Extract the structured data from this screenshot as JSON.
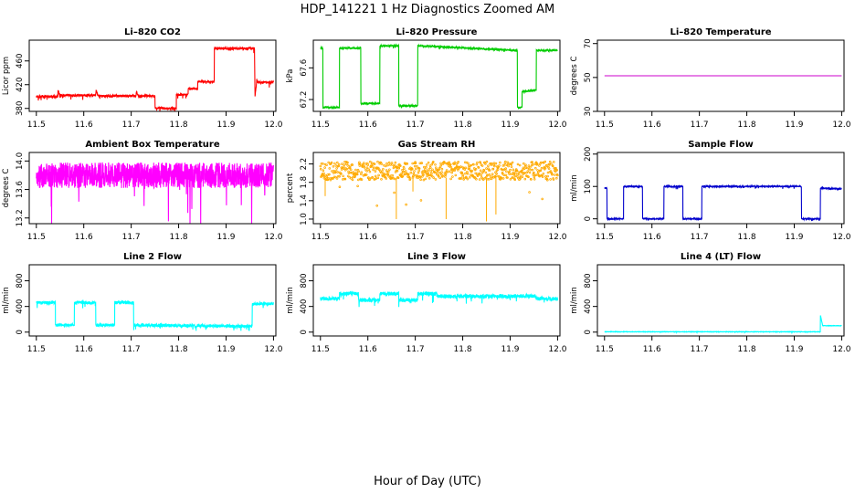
{
  "figure": {
    "title": "HDP_141221  1 Hz Diagnostics Zoomed AM",
    "xlabel": "Hour of Day (UTC)"
  },
  "chart_data": [
    {
      "type": "line",
      "title": "Li–820 CO2",
      "ylabel": "Licor ppm",
      "color": "#ff0000",
      "xlim": [
        11.485,
        12.005
      ],
      "ylim": [
        375,
        495
      ],
      "x_ticks": [
        "11.5",
        "11.6",
        "11.7",
        "11.8",
        "11.9",
        "12.0"
      ],
      "y_ticks": [
        "380",
        "420",
        "460"
      ],
      "x": [
        11.5,
        11.545,
        11.546,
        11.55,
        11.55,
        11.625,
        11.626,
        11.63,
        11.63,
        11.71,
        11.711,
        11.715,
        11.715,
        11.75,
        11.75,
        11.795,
        11.795,
        11.82,
        11.82,
        11.84,
        11.84,
        11.875,
        11.875,
        11.96,
        11.961,
        11.965,
        11.965,
        12.0
      ],
      "values": [
        400,
        400,
        412,
        400,
        402,
        402,
        410,
        402,
        401,
        401,
        410,
        401,
        401,
        401,
        380,
        380,
        403,
        403,
        413,
        413,
        425,
        425,
        481,
        481,
        399,
        430,
        424,
        424
      ],
      "noise": 2
    },
    {
      "type": "line",
      "title": "Li–820 Pressure",
      "ylabel": "kPa",
      "color": "#00cc00",
      "xlim": [
        11.485,
        12.005
      ],
      "ylim": [
        67.05,
        67.95
      ],
      "x_ticks": [
        "11.5",
        "11.6",
        "11.7",
        "11.8",
        "11.9",
        "12.0"
      ],
      "y_ticks": [
        "67.2",
        "67.6"
      ],
      "x": [
        11.5,
        11.505,
        11.505,
        11.54,
        11.54,
        11.585,
        11.585,
        11.625,
        11.625,
        11.665,
        11.665,
        11.705,
        11.705,
        11.915,
        11.915,
        11.925,
        11.925,
        11.955,
        11.955,
        12.0
      ],
      "values": [
        67.85,
        67.85,
        67.1,
        67.1,
        67.85,
        67.85,
        67.15,
        67.15,
        67.88,
        67.88,
        67.12,
        67.12,
        67.88,
        67.82,
        67.1,
        67.1,
        67.3,
        67.32,
        67.82,
        67.82
      ],
      "noise": 0.01
    },
    {
      "type": "line",
      "title": "Li–820 Temperature",
      "ylabel": "degrees C",
      "color": "#cc00cc",
      "xlim": [
        11.485,
        12.005
      ],
      "ylim": [
        30,
        72
      ],
      "x_ticks": [
        "11.5",
        "11.6",
        "11.7",
        "11.8",
        "11.9",
        "12.0"
      ],
      "y_ticks": [
        "30",
        "50",
        "70"
      ],
      "x": [
        11.5,
        12.0
      ],
      "values": [
        51,
        51
      ],
      "noise": 0
    },
    {
      "type": "line",
      "title": "Ambient Box Temperature",
      "ylabel": "degrees C",
      "color": "#ff00ff",
      "xlim": [
        11.485,
        12.005
      ],
      "ylim": [
        13.12,
        14.12
      ],
      "x_ticks": [
        "11.5",
        "11.6",
        "11.7",
        "11.8",
        "11.9",
        "12.0"
      ],
      "y_ticks": [
        "13.2",
        "13.6",
        "14.0"
      ],
      "x": [
        11.5,
        12.0
      ],
      "values": [
        13.8,
        13.8
      ],
      "noise": 0.18
    },
    {
      "type": "scatter",
      "title": "Gas Stream RH",
      "ylabel": "percent",
      "color": "#ffaa00",
      "xlim": [
        11.485,
        12.005
      ],
      "ylim": [
        0.9,
        2.45
      ],
      "x_ticks": [
        "11.5",
        "11.6",
        "11.7",
        "11.8",
        "11.9",
        "12.0"
      ],
      "y_ticks": [
        "1.0",
        "1.4",
        "1.8",
        "2.2"
      ],
      "x": [
        11.5,
        12.0
      ],
      "values": [
        2.05,
        2.05
      ],
      "noise": 0.2
    },
    {
      "type": "line",
      "title": "Sample Flow",
      "ylabel": "ml/min",
      "color": "#0000cc",
      "xlim": [
        11.485,
        12.005
      ],
      "ylim": [
        -15,
        205
      ],
      "x_ticks": [
        "11.5",
        "11.6",
        "11.7",
        "11.8",
        "11.9",
        "12.0"
      ],
      "y_ticks": [
        "0",
        "100",
        "200"
      ],
      "x": [
        11.5,
        11.505,
        11.505,
        11.54,
        11.54,
        11.58,
        11.58,
        11.625,
        11.625,
        11.665,
        11.665,
        11.705,
        11.705,
        11.915,
        11.915,
        11.955,
        11.955,
        12.0
      ],
      "values": [
        95,
        95,
        0,
        0,
        100,
        100,
        0,
        0,
        100,
        100,
        0,
        0,
        100,
        100,
        0,
        0,
        95,
        92
      ],
      "noise": 2
    },
    {
      "type": "line",
      "title": "Line 2 Flow",
      "ylabel": "ml/min",
      "color": "#00ffff",
      "xlim": [
        11.485,
        12.005
      ],
      "ylim": [
        -60,
        1050
      ],
      "x_ticks": [
        "11.5",
        "11.6",
        "11.7",
        "11.8",
        "11.9",
        "12.0"
      ],
      "y_ticks": [
        "0",
        "400",
        "800"
      ],
      "x": [
        11.5,
        11.54,
        11.54,
        11.58,
        11.58,
        11.625,
        11.625,
        11.665,
        11.665,
        11.705,
        11.705,
        11.955,
        11.955,
        12.0
      ],
      "values": [
        460,
        460,
        110,
        110,
        460,
        460,
        110,
        110,
        460,
        460,
        110,
        90,
        440,
        440
      ],
      "noise": 25
    },
    {
      "type": "line",
      "title": "Line 3 Flow",
      "ylabel": "ml/min",
      "color": "#00ffff",
      "xlim": [
        11.485,
        12.005
      ],
      "ylim": [
        -60,
        1050
      ],
      "x_ticks": [
        "11.5",
        "11.6",
        "11.7",
        "11.8",
        "11.9",
        "12.0"
      ],
      "y_ticks": [
        "0",
        "400",
        "800"
      ],
      "x": [
        11.5,
        11.54,
        11.54,
        11.58,
        11.58,
        11.625,
        11.625,
        11.665,
        11.665,
        11.705,
        11.705,
        11.745,
        11.745,
        11.955,
        11.955,
        12.0
      ],
      "values": [
        520,
        520,
        600,
        600,
        500,
        500,
        600,
        600,
        500,
        500,
        600,
        600,
        560,
        560,
        520,
        520
      ],
      "noise": 30
    },
    {
      "type": "line",
      "title": "Line 4 (LT) Flow",
      "ylabel": "ml/min",
      "color": "#00ffff",
      "xlim": [
        11.485,
        12.005
      ],
      "ylim": [
        -60,
        1050
      ],
      "x_ticks": [
        "11.5",
        "11.6",
        "11.7",
        "11.8",
        "11.9",
        "12.0"
      ],
      "y_ticks": [
        "0",
        "400",
        "800"
      ],
      "x": [
        11.5,
        11.955,
        11.955,
        11.96,
        11.96,
        12.0
      ],
      "values": [
        5,
        5,
        270,
        100,
        100,
        100
      ],
      "noise": 3
    }
  ]
}
